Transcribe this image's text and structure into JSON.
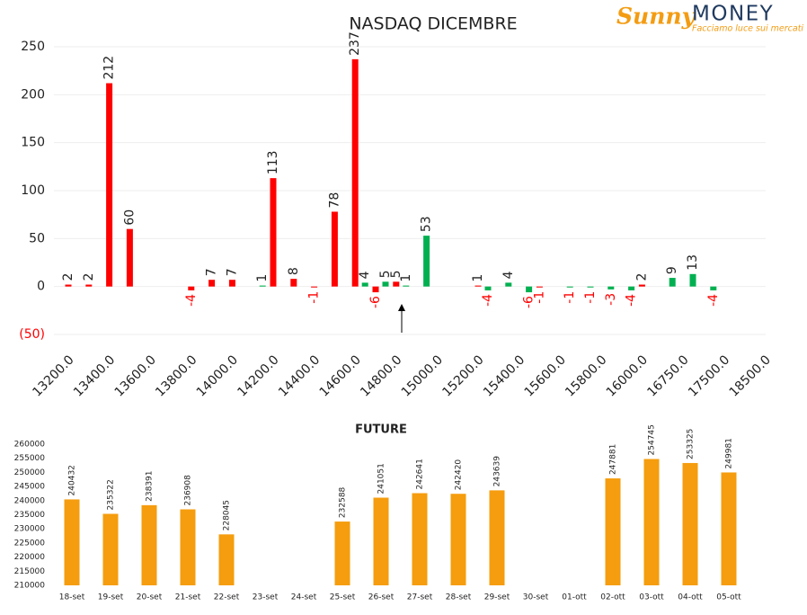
{
  "logo": {
    "brand": "Sunny",
    "name": "MONEY",
    "tagline": "Facciamo luce sui mercati"
  },
  "chart_data": [
    {
      "type": "bar",
      "title": "NASDAQ DICEMBRE",
      "categories": [
        "13200.0",
        null,
        "13400.0",
        null,
        "13600.0",
        null,
        "13800.0",
        null,
        "14000.0",
        null,
        "14200.0",
        null,
        "14400.0",
        null,
        "14600.0",
        null,
        "14800.0",
        null,
        "15000.0",
        null,
        "15200.0",
        null,
        "15400.0",
        null,
        "15600.0",
        null,
        "15800.0",
        null,
        "16000.0",
        null,
        "16750.0",
        null,
        "17500.0",
        null,
        "18500.0"
      ],
      "series": [
        {
          "color": "#ff0000",
          "values": [
            2,
            2,
            212,
            60,
            null,
            null,
            -4,
            7,
            7,
            null,
            113,
            8,
            -1,
            78,
            237,
            -6,
            5,
            null,
            null,
            null,
            1,
            null,
            null,
            -1,
            null,
            null,
            null,
            null,
            2,
            null,
            null,
            null,
            null,
            null,
            null
          ]
        },
        {
          "color": "#00b050",
          "values": [
            null,
            null,
            null,
            null,
            null,
            null,
            null,
            null,
            null,
            1,
            null,
            null,
            null,
            null,
            4,
            5,
            1,
            53,
            null,
            null,
            -4,
            4,
            -6,
            null,
            -1,
            -1,
            -3,
            -4,
            null,
            9,
            13,
            -4,
            null,
            null,
            null
          ]
        }
      ],
      "ylim": [
        -50,
        250
      ],
      "yticks": [
        {
          "value": -50,
          "label": "(50)"
        },
        0,
        50,
        100,
        150,
        200,
        250
      ],
      "grid": true
    },
    {
      "type": "bar",
      "title": "FUTURE",
      "categories": [
        "18-set",
        "19-set",
        "20-set",
        "21-set",
        "22-set",
        "23-set",
        "24-set",
        "25-set",
        "26-set",
        "27-set",
        "28-set",
        "29-set",
        "30-set",
        "01-ott",
        "02-ott",
        "03-ott",
        "04-ott",
        "05-ott"
      ],
      "values": [
        240432,
        235322,
        238391,
        236908,
        228045,
        null,
        null,
        232588,
        241051,
        242641,
        242420,
        243639,
        null,
        null,
        247881,
        254745,
        253325,
        249981
      ],
      "color": "#f59d0e",
      "ylim": [
        210000,
        260000
      ],
      "yticks": [
        210000,
        215000,
        220000,
        225000,
        230000,
        235000,
        240000,
        245000,
        250000,
        255000,
        260000
      ],
      "grid": false
    }
  ]
}
